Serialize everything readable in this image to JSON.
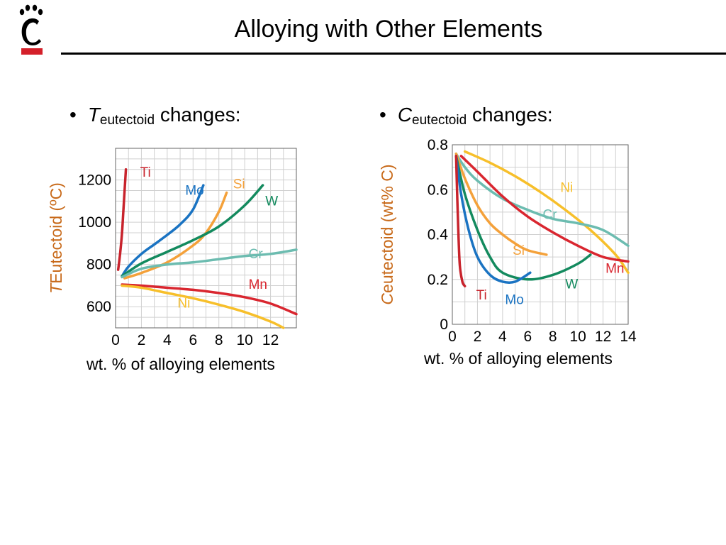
{
  "slide": {
    "title": "Alloying with Other Elements",
    "bullets": [
      {
        "italic": "T",
        "sub": "eutectoid",
        "rest": " changes:"
      },
      {
        "italic": "C",
        "sub": "eutectoid",
        "rest": " changes:"
      }
    ],
    "x_caption": "wt. % of alloying elements"
  },
  "colors": {
    "Ti": "#c8232c",
    "Mo": "#1a73c2",
    "Si": "#f4a13a",
    "W": "#138a5e",
    "Cr": "#6cbcb0",
    "Mn": "#d9262f",
    "Ni": "#f7bf2a",
    "axis_label": "#c86a1a",
    "logo_red": "#d4202a"
  },
  "chart_data": [
    {
      "type": "line",
      "ylabel": {
        "italic": "T",
        "rest": "Eutectoid (ºC)"
      },
      "xlabel": "wt. % of alloying elements",
      "xlim": [
        0,
        14
      ],
      "ylim": [
        500,
        1350
      ],
      "xticks": [
        0,
        2,
        4,
        6,
        8,
        10,
        12
      ],
      "yticks": [
        600,
        800,
        1000,
        1200
      ],
      "grid": true,
      "series": [
        {
          "name": "Ti",
          "label_pos": [
            1.9,
            1215
          ],
          "points": [
            [
              0.2,
              775
            ],
            [
              0.35,
              850
            ],
            [
              0.5,
              950
            ],
            [
              0.6,
              1050
            ],
            [
              0.7,
              1150
            ],
            [
              0.8,
              1250
            ]
          ]
        },
        {
          "name": "Mo",
          "label_pos": [
            5.4,
            1130
          ],
          "points": [
            [
              0.5,
              745
            ],
            [
              1,
              790
            ],
            [
              2,
              850
            ],
            [
              3,
              895
            ],
            [
              4,
              940
            ],
            [
              5,
              990
            ],
            [
              6,
              1060
            ],
            [
              6.8,
              1175
            ]
          ]
        },
        {
          "name": "Si",
          "label_pos": [
            9.1,
            1160
          ],
          "points": [
            [
              0.7,
              735
            ],
            [
              2,
              760
            ],
            [
              4,
              810
            ],
            [
              6,
              890
            ],
            [
              7,
              950
            ],
            [
              8,
              1050
            ],
            [
              8.6,
              1140
            ]
          ]
        },
        {
          "name": "W",
          "label_pos": [
            11.6,
            1080
          ],
          "points": [
            [
              0.5,
              745
            ],
            [
              2,
              805
            ],
            [
              4,
              860
            ],
            [
              6,
              915
            ],
            [
              8,
              980
            ],
            [
              10,
              1080
            ],
            [
              11.4,
              1175
            ]
          ]
        },
        {
          "name": "Cr",
          "label_pos": [
            10.3,
            830
          ],
          "points": [
            [
              0.5,
              740
            ],
            [
              2,
              780
            ],
            [
              4,
              800
            ],
            [
              6,
              810
            ],
            [
              8,
              825
            ],
            [
              10,
              840
            ],
            [
              12,
              850
            ],
            [
              14,
              870
            ]
          ]
        },
        {
          "name": "Mn",
          "label_pos": [
            10.3,
            685
          ],
          "points": [
            [
              0.5,
              705
            ],
            [
              2,
              700
            ],
            [
              4,
              690
            ],
            [
              6,
              680
            ],
            [
              8,
              665
            ],
            [
              10,
              645
            ],
            [
              12,
              615
            ],
            [
              14,
              565
            ]
          ]
        },
        {
          "name": "Ni",
          "label_pos": [
            4.8,
            595
          ],
          "points": [
            [
              0.5,
              700
            ],
            [
              2,
              690
            ],
            [
              4,
              665
            ],
            [
              6,
              640
            ],
            [
              8,
              610
            ],
            [
              10,
              575
            ],
            [
              12,
              530
            ],
            [
              13,
              500
            ]
          ]
        }
      ]
    },
    {
      "type": "line",
      "ylabel": {
        "italic": "C",
        "rest": "eutectoid (wt% C)"
      },
      "xlabel": "wt. % of alloying elements",
      "xlim": [
        0,
        14
      ],
      "ylim": [
        0,
        0.8
      ],
      "xticks": [
        0,
        2,
        4,
        6,
        8,
        10,
        12,
        14
      ],
      "yticks": [
        0,
        0.2,
        0.4,
        0.6,
        0.8
      ],
      "grid": true,
      "series": [
        {
          "name": "Ni",
          "label_pos": [
            8.6,
            0.59
          ],
          "points": [
            [
              1,
              0.77
            ],
            [
              3,
              0.72
            ],
            [
              5,
              0.66
            ],
            [
              7,
              0.59
            ],
            [
              9,
              0.51
            ],
            [
              11,
              0.42
            ],
            [
              13,
              0.31
            ],
            [
              14,
              0.23
            ]
          ]
        },
        {
          "name": "Cr",
          "label_pos": [
            7.2,
            0.47
          ],
          "points": [
            [
              0.3,
              0.76
            ],
            [
              1,
              0.7
            ],
            [
              2,
              0.64
            ],
            [
              4,
              0.56
            ],
            [
              6,
              0.51
            ],
            [
              8,
              0.47
            ],
            [
              10,
              0.45
            ],
            [
              12,
              0.42
            ],
            [
              14,
              0.35
            ]
          ]
        },
        {
          "name": "Si",
          "label_pos": [
            4.8,
            0.31
          ],
          "points": [
            [
              0.3,
              0.76
            ],
            [
              1,
              0.65
            ],
            [
              2,
              0.53
            ],
            [
              3,
              0.45
            ],
            [
              4,
              0.4
            ],
            [
              5,
              0.36
            ],
            [
              6,
              0.33
            ],
            [
              7.5,
              0.31
            ]
          ]
        },
        {
          "name": "Mn",
          "label_pos": [
            12.2,
            0.23
          ],
          "points": [
            [
              0.7,
              0.75
            ],
            [
              2,
              0.68
            ],
            [
              4,
              0.57
            ],
            [
              6,
              0.48
            ],
            [
              8,
              0.41
            ],
            [
              10,
              0.35
            ],
            [
              12,
              0.3
            ],
            [
              14,
              0.28
            ]
          ]
        },
        {
          "name": "W",
          "label_pos": [
            9.0,
            0.16
          ],
          "points": [
            [
              0.3,
              0.75
            ],
            [
              1,
              0.58
            ],
            [
              2,
              0.42
            ],
            [
              3,
              0.3
            ],
            [
              4,
              0.23
            ],
            [
              6,
              0.2
            ],
            [
              8,
              0.22
            ],
            [
              10,
              0.27
            ],
            [
              11,
              0.31
            ]
          ]
        },
        {
          "name": "Mo",
          "label_pos": [
            4.2,
            0.09
          ],
          "points": [
            [
              0.3,
              0.75
            ],
            [
              0.7,
              0.58
            ],
            [
              1.3,
              0.42
            ],
            [
              2,
              0.3
            ],
            [
              3,
              0.22
            ],
            [
              4,
              0.19
            ],
            [
              5,
              0.19
            ],
            [
              6.2,
              0.23
            ]
          ]
        },
        {
          "name": "Ti",
          "label_pos": [
            1.9,
            0.11
          ],
          "points": [
            [
              0.3,
              0.75
            ],
            [
              0.4,
              0.55
            ],
            [
              0.5,
              0.38
            ],
            [
              0.6,
              0.26
            ],
            [
              0.8,
              0.19
            ],
            [
              1,
              0.17
            ]
          ]
        }
      ]
    }
  ]
}
